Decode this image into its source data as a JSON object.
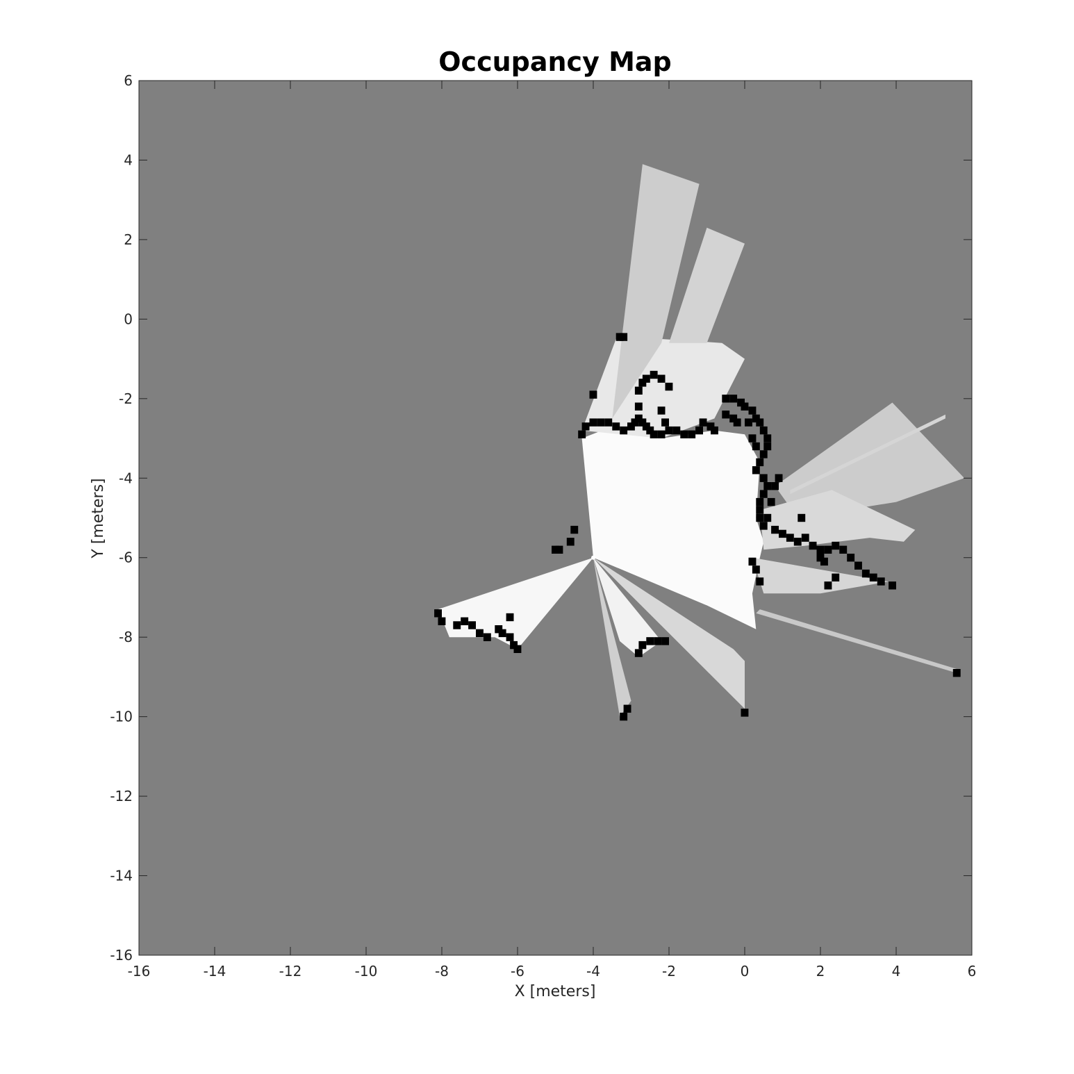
{
  "chart_data": {
    "type": "heatmap",
    "title": "Occupancy Map",
    "xlabel": "X [meters]",
    "ylabel": "Y [meters]",
    "xlim": [
      -16,
      6
    ],
    "ylim": [
      -16,
      6
    ],
    "xticks": [
      -16,
      -14,
      -12,
      -10,
      -8,
      -6,
      -4,
      -2,
      0,
      2,
      4,
      6
    ],
    "yticks": [
      -16,
      -14,
      -12,
      -10,
      -8,
      -6,
      -4,
      -2,
      0,
      2,
      4,
      6
    ],
    "colormap": "gray",
    "unknown_color": "#808080",
    "free_color": "#ffffff",
    "occupied_color": "#000000",
    "sensor_origin": [
      -4.0,
      -6.0
    ],
    "free_regions": [
      {
        "name": "main-room",
        "shade": "#fbfbfb",
        "polygon": [
          [
            -4.0,
            -6.0
          ],
          [
            -4.3,
            -3.0
          ],
          [
            -3.5,
            -2.7
          ],
          [
            -2.2,
            -3.0
          ],
          [
            -0.8,
            -2.8
          ],
          [
            0.0,
            -2.9
          ],
          [
            0.4,
            -3.6
          ],
          [
            0.3,
            -5.0
          ],
          [
            0.5,
            -5.6
          ],
          [
            0.4,
            -6.0
          ],
          [
            0.2,
            -6.9
          ],
          [
            0.3,
            -7.8
          ],
          [
            -1.0,
            -7.2
          ]
        ]
      },
      {
        "name": "left-wedge",
        "shade": "#f7f7f7",
        "polygon": [
          [
            -4.0,
            -6.0
          ],
          [
            -8.1,
            -7.3
          ],
          [
            -7.8,
            -8.0
          ],
          [
            -6.6,
            -8.0
          ],
          [
            -6.0,
            -8.3
          ]
        ]
      },
      {
        "name": "lower-fan",
        "shade": "#f2f2f2",
        "polygon": [
          [
            -4.0,
            -6.0
          ],
          [
            -2.2,
            -8.1
          ],
          [
            -2.8,
            -8.5
          ],
          [
            -3.3,
            -8.1
          ]
        ]
      },
      {
        "name": "lower-ray-1",
        "shade": "#cfcfcf",
        "polygon": [
          [
            -4.0,
            -6.0
          ],
          [
            -3.0,
            -9.6
          ],
          [
            -3.3,
            -10.0
          ]
        ]
      },
      {
        "name": "lower-ray-2",
        "shade": "#d8d8d8",
        "polygon": [
          [
            -4.0,
            -6.0
          ],
          [
            0.0,
            -9.8
          ],
          [
            0.0,
            -8.6
          ],
          [
            -0.3,
            -8.3
          ]
        ]
      },
      {
        "name": "upper-room",
        "shade": "#e8e8e8",
        "polygon": [
          [
            -4.3,
            -2.8
          ],
          [
            -3.4,
            -0.5
          ],
          [
            -2.2,
            -0.5
          ],
          [
            -0.6,
            -0.6
          ],
          [
            0.0,
            -1.0
          ],
          [
            -0.8,
            -2.5
          ],
          [
            -2.2,
            -3.0
          ]
        ]
      },
      {
        "name": "north-beam-1",
        "shade": "#cdcdcd",
        "polygon": [
          [
            -3.5,
            -2.5
          ],
          [
            -2.7,
            3.9
          ],
          [
            -1.2,
            3.4
          ],
          [
            -2.2,
            -0.6
          ]
        ]
      },
      {
        "name": "north-beam-2",
        "shade": "#d3d3d3",
        "polygon": [
          [
            -2.0,
            -0.6
          ],
          [
            -1.0,
            2.3
          ],
          [
            0.0,
            1.9
          ],
          [
            -1.0,
            -0.6
          ]
        ]
      },
      {
        "name": "east-fan-1",
        "shade": "#cccccc",
        "polygon": [
          [
            0.8,
            -4.2
          ],
          [
            3.9,
            -2.1
          ],
          [
            5.8,
            -4.0
          ],
          [
            4.0,
            -4.6
          ],
          [
            1.4,
            -5.0
          ]
        ]
      },
      {
        "name": "east-fan-2",
        "shade": "#d9d9d9",
        "polygon": [
          [
            0.4,
            -4.8
          ],
          [
            2.3,
            -4.3
          ],
          [
            4.5,
            -5.3
          ],
          [
            4.2,
            -5.6
          ],
          [
            3.3,
            -5.5
          ],
          [
            1.6,
            -5.7
          ],
          [
            0.5,
            -5.8
          ]
        ]
      },
      {
        "name": "east-fan-3",
        "shade": "#d6d6d6",
        "polygon": [
          [
            0.2,
            -6.0
          ],
          [
            3.8,
            -6.6
          ],
          [
            2.0,
            -6.9
          ],
          [
            0.5,
            -6.9
          ]
        ]
      },
      {
        "name": "east-ray-long",
        "shade": "#c8c8c8",
        "polygon": [
          [
            0.4,
            -7.3
          ],
          [
            5.6,
            -8.8
          ],
          [
            5.6,
            -8.9
          ],
          [
            0.3,
            -7.4
          ]
        ]
      },
      {
        "name": "east-ray-up",
        "shade": "#d5d5d5",
        "polygon": [
          [
            1.2,
            -4.3
          ],
          [
            5.3,
            -2.4
          ],
          [
            5.3,
            -2.5
          ],
          [
            1.2,
            -4.4
          ]
        ]
      }
    ],
    "occupied_points": [
      [
        -4.3,
        -2.9
      ],
      [
        -4.2,
        -2.7
      ],
      [
        -4.0,
        -2.6
      ],
      [
        -3.8,
        -2.6
      ],
      [
        -3.6,
        -2.6
      ],
      [
        -3.4,
        -2.7
      ],
      [
        -3.2,
        -2.8
      ],
      [
        -3.0,
        -2.7
      ],
      [
        -2.9,
        -2.6
      ],
      [
        -2.8,
        -2.5
      ],
      [
        -2.7,
        -2.6
      ],
      [
        -2.6,
        -2.7
      ],
      [
        -2.5,
        -2.8
      ],
      [
        -2.4,
        -2.9
      ],
      [
        -2.2,
        -2.9
      ],
      [
        -2.0,
        -2.8
      ],
      [
        -1.8,
        -2.8
      ],
      [
        -1.6,
        -2.9
      ],
      [
        -1.4,
        -2.9
      ],
      [
        -1.2,
        -2.8
      ],
      [
        -1.1,
        -2.6
      ],
      [
        -0.9,
        -2.7
      ],
      [
        -0.8,
        -2.8
      ],
      [
        -2.8,
        -1.8
      ],
      [
        -2.7,
        -1.6
      ],
      [
        -2.6,
        -1.5
      ],
      [
        -2.4,
        -1.4
      ],
      [
        -2.2,
        -1.5
      ],
      [
        -2.0,
        -1.7
      ],
      [
        -2.8,
        -2.2
      ],
      [
        -2.2,
        -2.3
      ],
      [
        -2.1,
        -2.6
      ],
      [
        -3.3,
        -0.45
      ],
      [
        -3.2,
        -0.45
      ],
      [
        -4.0,
        -1.9
      ],
      [
        -0.5,
        -2.0
      ],
      [
        -0.3,
        -2.0
      ],
      [
        -0.1,
        -2.1
      ],
      [
        0.0,
        -2.2
      ],
      [
        0.2,
        -2.3
      ],
      [
        0.3,
        -2.5
      ],
      [
        0.4,
        -2.6
      ],
      [
        0.5,
        -2.8
      ],
      [
        0.6,
        -3.0
      ],
      [
        0.6,
        -3.2
      ],
      [
        0.5,
        -3.4
      ],
      [
        0.4,
        -3.6
      ],
      [
        0.3,
        -3.8
      ],
      [
        0.5,
        -4.0
      ],
      [
        0.6,
        -4.2
      ],
      [
        0.5,
        -4.4
      ],
      [
        0.4,
        -4.6
      ],
      [
        0.4,
        -4.8
      ],
      [
        0.4,
        -5.0
      ],
      [
        0.5,
        -5.2
      ],
      [
        0.6,
        -5.0
      ],
      [
        0.7,
        -4.6
      ],
      [
        0.8,
        -4.2
      ],
      [
        0.9,
        -4.0
      ],
      [
        -0.5,
        -2.4
      ],
      [
        -0.3,
        -2.5
      ],
      [
        -0.2,
        -2.6
      ],
      [
        0.1,
        -2.6
      ],
      [
        0.2,
        -3.0
      ],
      [
        0.3,
        -3.2
      ],
      [
        0.8,
        -5.3
      ],
      [
        1.0,
        -5.4
      ],
      [
        1.2,
        -5.5
      ],
      [
        1.4,
        -5.6
      ],
      [
        1.6,
        -5.5
      ],
      [
        1.8,
        -5.7
      ],
      [
        2.0,
        -5.8
      ],
      [
        2.2,
        -5.8
      ],
      [
        2.4,
        -5.7
      ],
      [
        2.6,
        -5.8
      ],
      [
        2.8,
        -6.0
      ],
      [
        3.0,
        -6.2
      ],
      [
        3.2,
        -6.4
      ],
      [
        3.4,
        -6.5
      ],
      [
        3.6,
        -6.6
      ],
      [
        3.9,
        -6.7
      ],
      [
        1.5,
        -5.0
      ],
      [
        2.0,
        -6.0
      ],
      [
        2.1,
        -6.1
      ],
      [
        0.2,
        -6.1
      ],
      [
        0.3,
        -6.3
      ],
      [
        0.4,
        -6.6
      ],
      [
        2.2,
        -6.7
      ],
      [
        2.4,
        -6.5
      ],
      [
        -4.5,
        -5.3
      ],
      [
        -4.6,
        -5.6
      ],
      [
        -4.9,
        -5.8
      ],
      [
        -5.0,
        -5.8
      ],
      [
        -8.1,
        -7.4
      ],
      [
        -8.0,
        -7.6
      ],
      [
        -7.6,
        -7.7
      ],
      [
        -7.4,
        -7.6
      ],
      [
        -7.2,
        -7.7
      ],
      [
        -7.0,
        -7.9
      ],
      [
        -6.8,
        -8.0
      ],
      [
        -6.5,
        -7.8
      ],
      [
        -6.4,
        -7.9
      ],
      [
        -6.2,
        -8.0
      ],
      [
        -6.1,
        -8.2
      ],
      [
        -6.0,
        -8.3
      ],
      [
        -6.2,
        -7.5
      ],
      [
        -2.8,
        -8.4
      ],
      [
        -2.7,
        -8.2
      ],
      [
        -2.5,
        -8.1
      ],
      [
        -2.3,
        -8.1
      ],
      [
        -2.1,
        -8.1
      ],
      [
        -3.2,
        -10.0
      ],
      [
        -3.1,
        -9.8
      ],
      [
        0.0,
        -9.9
      ],
      [
        5.6,
        -8.9
      ]
    ]
  }
}
